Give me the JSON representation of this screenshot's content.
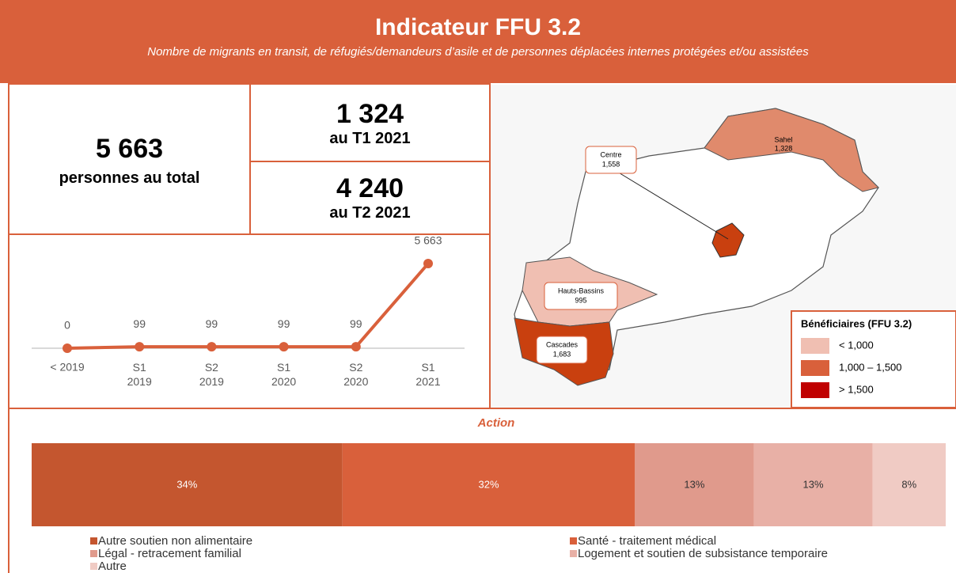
{
  "header": {
    "title": "Indicateur FFU 3.2",
    "subtitle": "Nombre de migrants en transit, de réfugiés/demandeurs d’asile et de personnes déplacées internes protégées et/ou assistées"
  },
  "kpis": [
    {
      "value": "5 663",
      "label": "personnes au total"
    },
    {
      "value": "1 324",
      "label": "au T1 2021"
    },
    {
      "value": "4 240",
      "label": "au T2 2021"
    }
  ],
  "map": {
    "regions": [
      {
        "name": "Sahel",
        "value": "1,328"
      },
      {
        "name": "Centre",
        "value": "1,558"
      },
      {
        "name": "Hauts-Bassins",
        "value": "995"
      },
      {
        "name": "Cascades",
        "value": "1,683"
      }
    ],
    "legend": {
      "title": "Bénéficiaires (FFU 3.2)",
      "items": [
        {
          "label": "< 1,000",
          "color": "#f0bfb2"
        },
        {
          "label": "1,000 – 1,500",
          "color": "#d9603b"
        },
        {
          "label": "> 1,500",
          "color": "#c00000"
        }
      ]
    }
  },
  "chart_data": [
    {
      "type": "line",
      "categories": [
        "< 2019",
        "S1\n2019",
        "S2\n2019",
        "S1\n2020",
        "S2\n2020",
        "S1\n2021"
      ],
      "values": [
        0,
        99,
        99,
        99,
        99,
        5663
      ],
      "value_labels": [
        "0",
        "99",
        "99",
        "99",
        "99",
        "5 663"
      ],
      "color": "#d9603b"
    },
    {
      "type": "stacked_bar",
      "title": "Action",
      "series": [
        {
          "name": "Autre soutien non alimentaire",
          "color": "#c4562f",
          "values": [
            34
          ],
          "value_labels": [
            "34%"
          ]
        },
        {
          "name": "Santé - traitement médical",
          "color": "#d9603b",
          "values": [
            32
          ],
          "value_labels": [
            "32%"
          ]
        },
        {
          "name": "Légal - retracement familial",
          "color": "#e09a8c",
          "values": [
            13
          ],
          "value_labels": [
            "13%"
          ]
        },
        {
          "name": "Logement et soutien de subsistance temporaire",
          "color": "#e8b0a6",
          "values": [
            13
          ],
          "value_labels": [
            "13%"
          ]
        },
        {
          "name": "Autre",
          "color": "#f0cbc4",
          "values": [
            8
          ],
          "value_labels": [
            "8%"
          ]
        }
      ]
    }
  ]
}
